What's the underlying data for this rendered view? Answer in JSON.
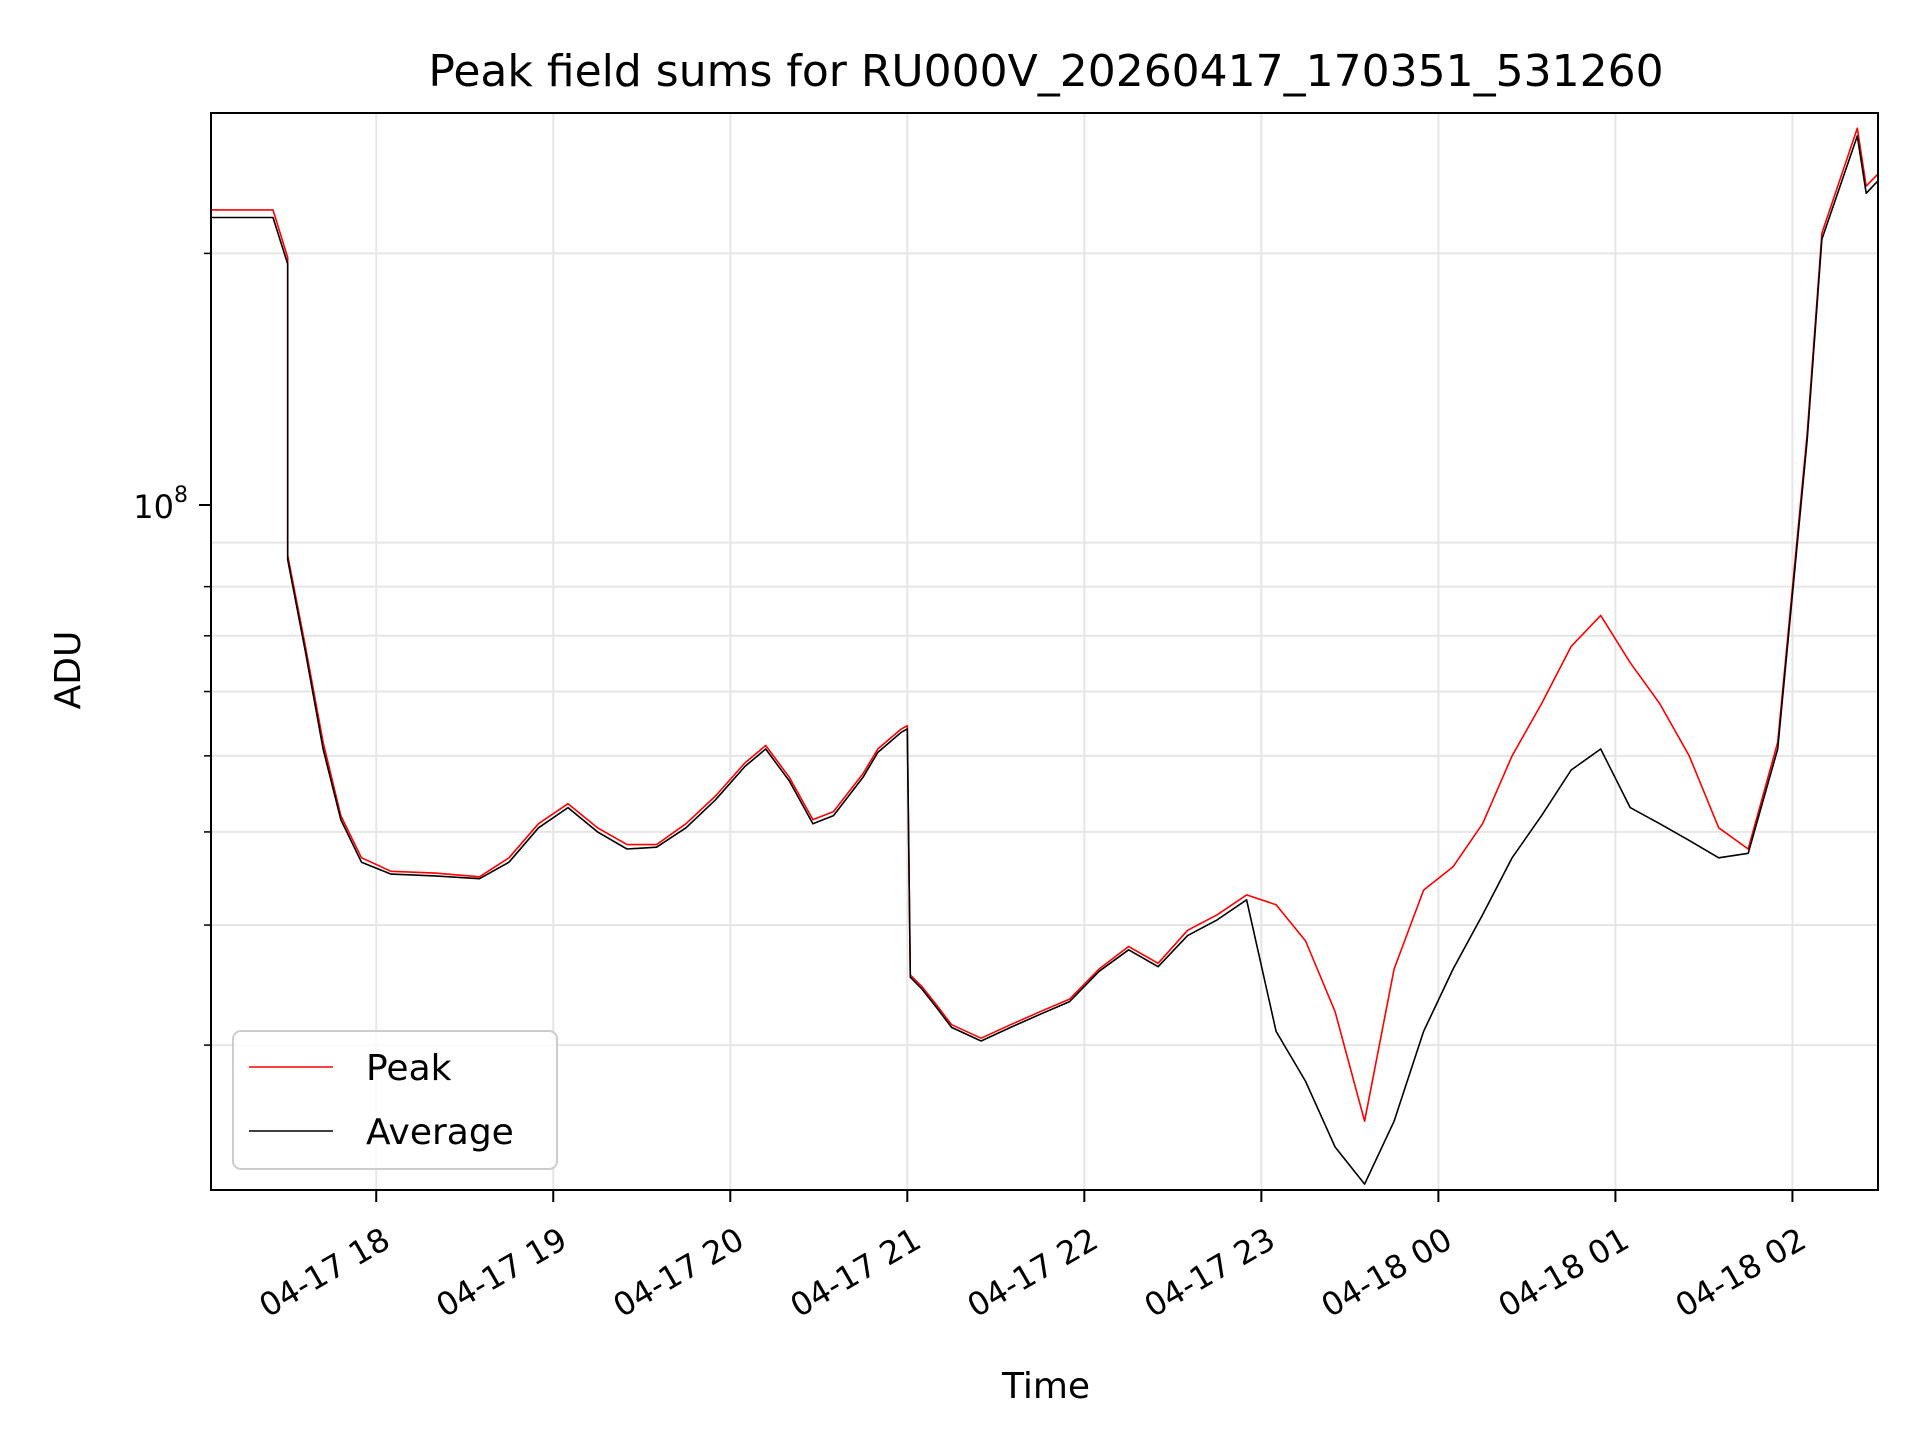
{
  "chart_data": {
    "type": "line",
    "title": "Peak field sums for RU000V_20260417_170351_531260",
    "xlabel": "Time",
    "ylabel": "ADU",
    "y_scale": "log",
    "grid": true,
    "legend_placement": "bottom-left",
    "x_range": [
      "2026-04-17 17:04",
      "2026-04-18 02:29"
    ],
    "y_range": [
      21200000,
      280000000
    ],
    "x_ticks": [
      "04-17 18",
      "04-17 19",
      "04-17 20",
      "04-17 21",
      "04-17 22",
      "04-17 23",
      "04-18 00",
      "04-18 01",
      "04-18 02"
    ],
    "y_major_tick": {
      "label": "10",
      "exponent": "8"
    },
    "series": [
      {
        "name": "Peak",
        "color": "#ff0000",
        "x": [
          "2026-04-17 17:04",
          "2026-04-17 17:10",
          "2026-04-17 17:20",
          "2026-04-17 17:25",
          "2026-04-17 17:30",
          "2026-04-17 17:30",
          "2026-04-17 17:36",
          "2026-04-17 17:42",
          "2026-04-17 17:48",
          "2026-04-17 17:55",
          "2026-04-17 18:05",
          "2026-04-17 18:20",
          "2026-04-17 18:35",
          "2026-04-17 18:45",
          "2026-04-17 18:55",
          "2026-04-17 19:05",
          "2026-04-17 19:15",
          "2026-04-17 19:25",
          "2026-04-17 19:35",
          "2026-04-17 19:45",
          "2026-04-17 19:55",
          "2026-04-17 20:05",
          "2026-04-17 20:12",
          "2026-04-17 20:20",
          "2026-04-17 20:28",
          "2026-04-17 20:35",
          "2026-04-17 20:45",
          "2026-04-17 20:50",
          "2026-04-17 20:58",
          "2026-04-17 21:00",
          "2026-04-17 21:01",
          "2026-04-17 21:05",
          "2026-04-17 21:10",
          "2026-04-17 21:15",
          "2026-04-17 21:25",
          "2026-04-17 21:35",
          "2026-04-17 21:45",
          "2026-04-17 21:55",
          "2026-04-17 22:05",
          "2026-04-17 22:15",
          "2026-04-17 22:25",
          "2026-04-17 22:35",
          "2026-04-17 22:45",
          "2026-04-17 22:55",
          "2026-04-17 23:05",
          "2026-04-17 23:15",
          "2026-04-17 23:25",
          "2026-04-17 23:35",
          "2026-04-17 23:45",
          "2026-04-17 23:55",
          "2026-04-18 00:05",
          "2026-04-18 00:15",
          "2026-04-18 00:25",
          "2026-04-18 00:35",
          "2026-04-18 00:45",
          "2026-04-18 00:55",
          "2026-04-18 01:05",
          "2026-04-18 01:15",
          "2026-04-18 01:25",
          "2026-04-18 01:35",
          "2026-04-18 01:45",
          "2026-04-18 01:55",
          "2026-04-18 02:05",
          "2026-04-18 02:10",
          "2026-04-18 02:22",
          "2026-04-18 02:25",
          "2026-04-18 02:29"
        ],
        "y": [
          222000000,
          222000000,
          222000000,
          222000000,
          198000000,
          97000000,
          78000000,
          62000000,
          52000000,
          47000000,
          45500000,
          45300000,
          44900000,
          47000000,
          51000000,
          53500000,
          50500000,
          48500000,
          48500000,
          51000000,
          54500000,
          59000000,
          61500000,
          57000000,
          51500000,
          52500000,
          57500000,
          61000000,
          64000000,
          64500000,
          35500000,
          34500000,
          33000000,
          31500000,
          30500000,
          31500000,
          32500000,
          33500000,
          36000000,
          38000000,
          36500000,
          39500000,
          41000000,
          43000000,
          42000000,
          38500000,
          32500000,
          25000000,
          36000000,
          43500000,
          46000000,
          51000000,
          60000000,
          68000000,
          78000000,
          84000000,
          75000000,
          68000000,
          60000000,
          50500000,
          48000000,
          62000000,
          130000000,
          210000000,
          270000000,
          235000000,
          242000000
        ]
      },
      {
        "name": "Average",
        "color": "#000000",
        "x": [
          "2026-04-17 17:04",
          "2026-04-17 17:10",
          "2026-04-17 17:20",
          "2026-04-17 17:25",
          "2026-04-17 17:30",
          "2026-04-17 17:30",
          "2026-04-17 17:36",
          "2026-04-17 17:42",
          "2026-04-17 17:48",
          "2026-04-17 17:55",
          "2026-04-17 18:05",
          "2026-04-17 18:20",
          "2026-04-17 18:35",
          "2026-04-17 18:45",
          "2026-04-17 18:55",
          "2026-04-17 19:05",
          "2026-04-17 19:15",
          "2026-04-17 19:25",
          "2026-04-17 19:35",
          "2026-04-17 19:45",
          "2026-04-17 19:55",
          "2026-04-17 20:05",
          "2026-04-17 20:12",
          "2026-04-17 20:20",
          "2026-04-17 20:28",
          "2026-04-17 20:35",
          "2026-04-17 20:45",
          "2026-04-17 20:50",
          "2026-04-17 20:58",
          "2026-04-17 21:00",
          "2026-04-17 21:01",
          "2026-04-17 21:05",
          "2026-04-17 21:10",
          "2026-04-17 21:15",
          "2026-04-17 21:25",
          "2026-04-17 21:35",
          "2026-04-17 21:45",
          "2026-04-17 21:55",
          "2026-04-17 22:05",
          "2026-04-17 22:15",
          "2026-04-17 22:25",
          "2026-04-17 22:35",
          "2026-04-17 22:45",
          "2026-04-17 22:55",
          "2026-04-17 23:05",
          "2026-04-17 23:15",
          "2026-04-17 23:25",
          "2026-04-17 23:35",
          "2026-04-17 23:45",
          "2026-04-17 23:55",
          "2026-04-18 00:05",
          "2026-04-18 00:15",
          "2026-04-18 00:25",
          "2026-04-18 00:35",
          "2026-04-18 00:45",
          "2026-04-18 00:55",
          "2026-04-18 01:05",
          "2026-04-18 01:15",
          "2026-04-18 01:25",
          "2026-04-18 01:35",
          "2026-04-18 01:45",
          "2026-04-18 01:55",
          "2026-04-18 02:05",
          "2026-04-18 02:10",
          "2026-04-18 02:22",
          "2026-04-18 02:25",
          "2026-04-18 02:29"
        ],
        "y": [
          218000000,
          218000000,
          218000000,
          218000000,
          195000000,
          96000000,
          77000000,
          61000000,
          51500000,
          46500000,
          45200000,
          45000000,
          44700000,
          46500000,
          50500000,
          53000000,
          50000000,
          48000000,
          48200000,
          50500000,
          54000000,
          58500000,
          61000000,
          56500000,
          51000000,
          52000000,
          57000000,
          60500000,
          63500000,
          64000000,
          35300000,
          34300000,
          32800000,
          31300000,
          30300000,
          31300000,
          32300000,
          33300000,
          35800000,
          37700000,
          36200000,
          39000000,
          40500000,
          42500000,
          31000000,
          27500000,
          23500000,
          21500000,
          25000000,
          31000000,
          36000000,
          41000000,
          47000000,
          52000000,
          58000000,
          61000000,
          53000000,
          51000000,
          49000000,
          47000000,
          47500000,
          61000000,
          128000000,
          207000000,
          265000000,
          231000000,
          238000000
        ]
      }
    ]
  }
}
